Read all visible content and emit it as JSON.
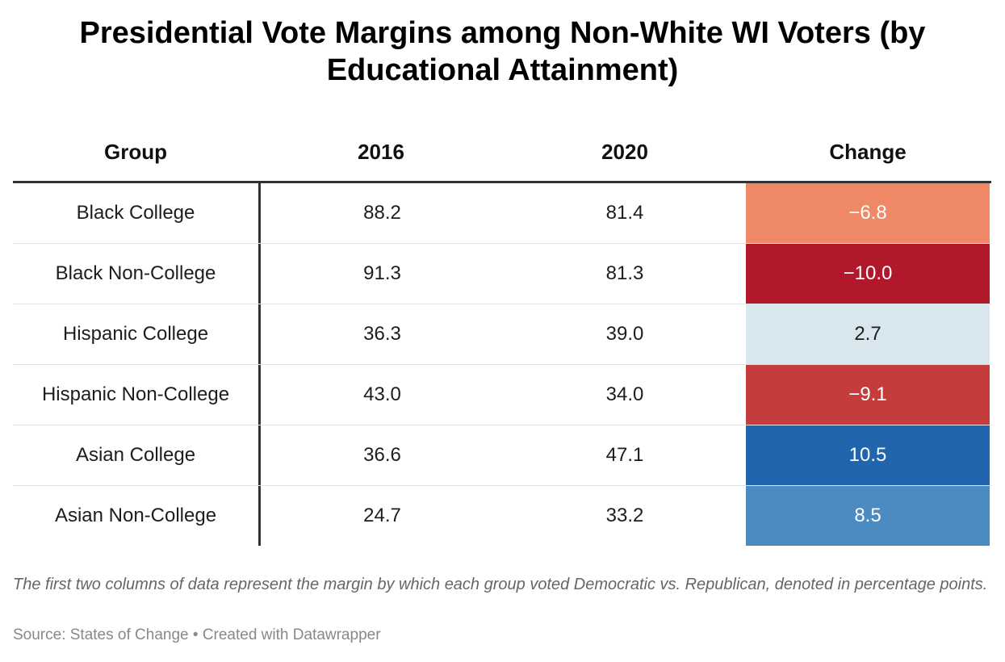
{
  "title": "Presidential Vote Margins among Non-White WI Voters (by Educational Attainment)",
  "note": "The first two columns of data represent the margin by which each group voted Democratic vs. Republican, denoted in percentage points.",
  "source": {
    "label": "Source: States of Change",
    "separator": "•",
    "credit": "Created with Datawrapper"
  },
  "colors": {
    "change_-10.0": "#b2182b",
    "change_-9.1": "#c43c3c",
    "change_-6.8": "#ee8866",
    "change_2.7": "#d8e7ed",
    "change_8.5": "#4b8bc2",
    "change_10.5": "#2166ac"
  },
  "chart_data": {
    "type": "table",
    "title": "Presidential Vote Margins among Non-White WI Voters (by Educational Attainment)",
    "columns": [
      "Group",
      "2016",
      "2020",
      "Change"
    ],
    "rows": [
      {
        "group": "Black College",
        "y2016": "88.2",
        "y2020": "81.4",
        "change": "−6.8",
        "change_value": -6.8
      },
      {
        "group": "Black Non-College",
        "y2016": "91.3",
        "y2020": "81.3",
        "change": "−10.0",
        "change_value": -10.0
      },
      {
        "group": "Hispanic College",
        "y2016": "36.3",
        "y2020": "39.0",
        "change": "2.7",
        "change_value": 2.7
      },
      {
        "group": "Hispanic Non-College",
        "y2016": "43.0",
        "y2020": "34.0",
        "change": "−9.1",
        "change_value": -9.1
      },
      {
        "group": "Asian College",
        "y2016": "36.6",
        "y2020": "47.1",
        "change": "10.5",
        "change_value": 10.5
      },
      {
        "group": "Asian Non-College",
        "y2016": "24.7",
        "y2020": "33.2",
        "change": "8.5",
        "change_value": 8.5
      }
    ]
  }
}
